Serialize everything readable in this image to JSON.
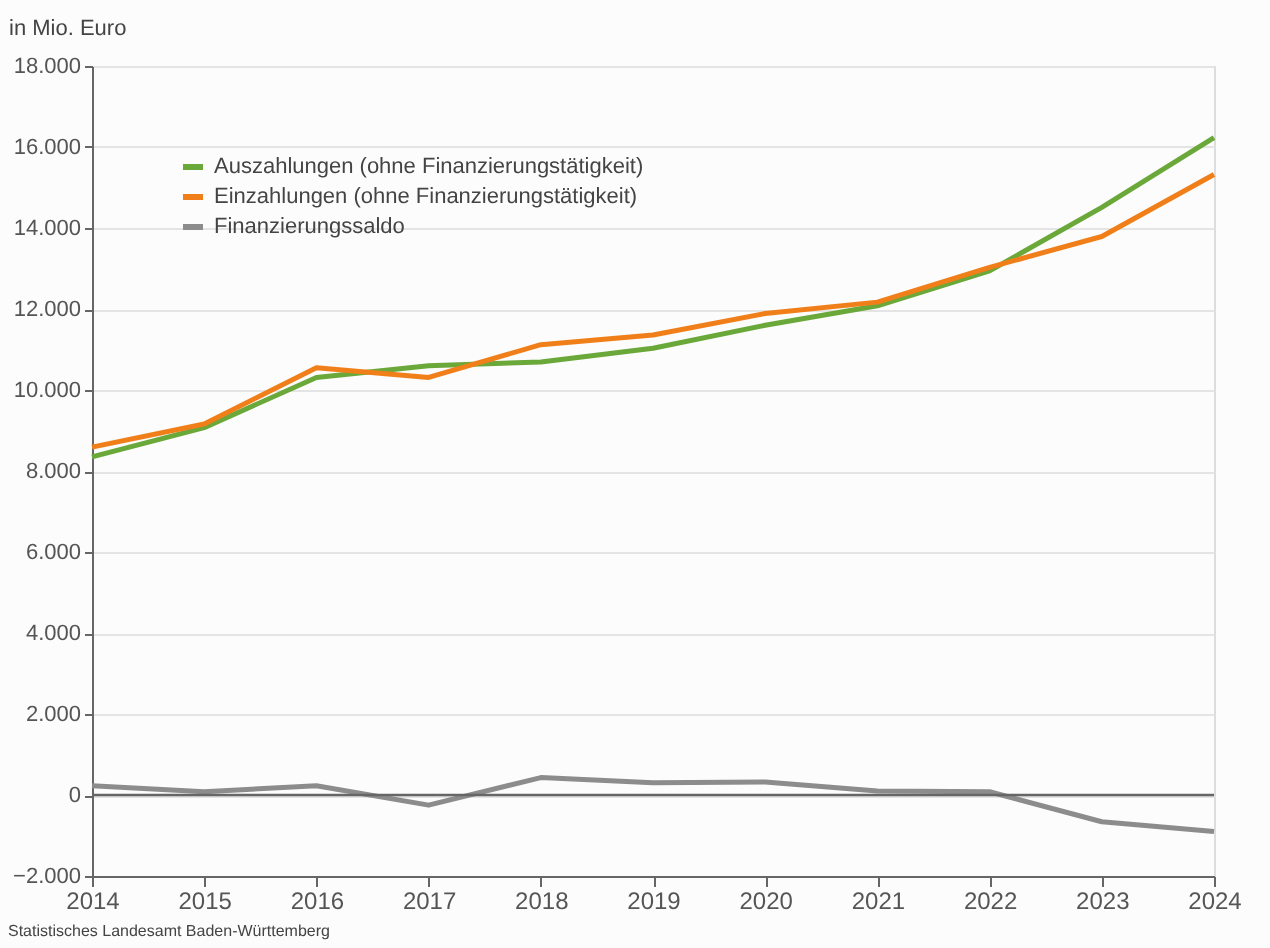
{
  "chart_data": {
    "type": "line",
    "ylabel": "in Mio. Euro",
    "x": [
      2014,
      2015,
      2016,
      2017,
      2018,
      2019,
      2020,
      2021,
      2022,
      2023,
      2024
    ],
    "xlim": [
      2014,
      2024
    ],
    "xticks": [
      2014,
      2015,
      2016,
      2017,
      2018,
      2019,
      2020,
      2021,
      2022,
      2023,
      2024
    ],
    "ylim": [
      -2000,
      18000
    ],
    "yticks": [
      {
        "value": -2000,
        "label": "−2.000"
      },
      0,
      {
        "value": 2000,
        "label": "2.000"
      },
      {
        "value": 4000,
        "label": "4.000"
      },
      {
        "value": 6000,
        "label": "6.000"
      },
      {
        "value": 8000,
        "label": "8.000"
      },
      {
        "value": 10000,
        "label": "10.000"
      },
      {
        "value": 12000,
        "label": "12.000"
      },
      {
        "value": 14000,
        "label": "14.000"
      },
      {
        "value": 16000,
        "label": "16.000"
      },
      {
        "value": 18000,
        "label": "18.000"
      }
    ],
    "series": [
      {
        "name": "Auszahlungen (ohne Finanzierungstätigkeit)",
        "color": "#6aa83a",
        "values": [
          8350,
          9070,
          10310,
          10600,
          10690,
          11030,
          11600,
          12080,
          12940,
          14510,
          16230
        ]
      },
      {
        "name": "Einzahlungen (ohne Finanzierungstätigkeit)",
        "color": "#f07f1a",
        "values": [
          8590,
          9160,
          10550,
          10310,
          11120,
          11360,
          11890,
          12170,
          13030,
          13790,
          15320
        ]
      },
      {
        "name": "Finanzierungssaldo",
        "color": "#8c8c8c",
        "values": [
          230,
          80,
          230,
          -250,
          430,
          300,
          320,
          100,
          80,
          -660,
          -900
        ]
      }
    ],
    "ref_lines": [
      {
        "axis": "y",
        "value": 0,
        "color": "#666666"
      }
    ],
    "grid": "y",
    "legend": "top left",
    "marker": "none",
    "line_style": "solid",
    "annotations": [
      "Statistisches Landesamt Baden-Württemberg"
    ]
  }
}
